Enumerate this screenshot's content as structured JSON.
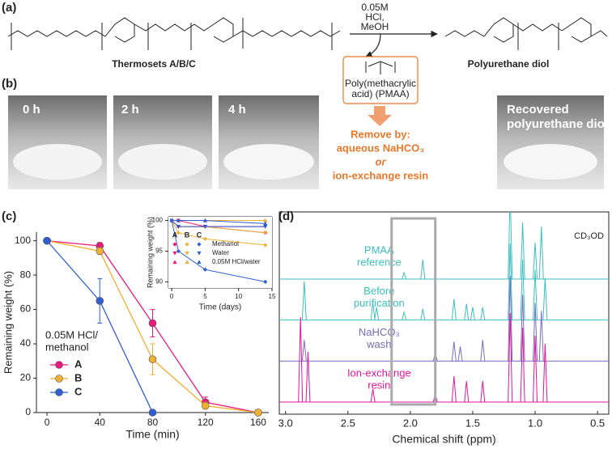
{
  "panel_a": {
    "label": "(a)",
    "conditions": [
      "0.05M",
      "HCl,",
      "MeOH"
    ],
    "reactant": "Thermosets A/B/C",
    "product": "Polyurethane diol",
    "byproduct": [
      "Poly(methacrylic",
      "acid) (PMAA)"
    ],
    "removal": [
      "Remove by:",
      "aqueous NaHCO₃",
      "or",
      "ion-exchange resin"
    ]
  },
  "panel_b": {
    "label": "(b)",
    "photos": [
      [
        "0 h"
      ],
      [
        "2 h"
      ],
      [
        "4 h"
      ],
      [
        "Recovered",
        "polyurethane diol"
      ]
    ]
  },
  "chart_data": [
    {
      "type": "line",
      "label": "(c)",
      "xlabel": "Time (min)",
      "ylabel": "Remaining weight (%)",
      "x": [
        0,
        40,
        80,
        120,
        160
      ],
      "xlim": [
        -8,
        168
      ],
      "xticks": [
        0,
        40,
        80,
        120,
        160
      ],
      "ylim": [
        0,
        105
      ],
      "yticks": [
        0,
        20,
        40,
        60,
        80,
        100
      ],
      "legend_title": [
        "0.05M HCl/",
        "methanol"
      ],
      "series": [
        {
          "name": "A",
          "color": "#e8197c",
          "values": [
            100,
            97,
            52,
            6,
            0
          ],
          "errors": [
            0,
            2,
            8,
            3,
            0
          ]
        },
        {
          "name": "B",
          "color": "#f0b030",
          "values": [
            100,
            94,
            31,
            4,
            0
          ],
          "errors": [
            0,
            2,
            9,
            2,
            0
          ]
        },
        {
          "name": "C",
          "color": "#2f5fd0",
          "values": [
            100,
            65,
            0,
            null,
            null
          ],
          "errors": [
            0,
            13,
            0,
            null,
            null
          ]
        }
      ]
    },
    {
      "type": "line",
      "xlabel": "Time (days)",
      "ylabel": "Remaining weight (%)",
      "x": [
        0,
        1,
        5,
        14
      ],
      "xlim": [
        -0.5,
        15
      ],
      "xticks": [
        0,
        5,
        10,
        15
      ],
      "ylim": [
        89,
        100.6
      ],
      "yticks": [
        90,
        95,
        100
      ],
      "columns": [
        "A",
        "B",
        "C"
      ],
      "colors": [
        "#e8197c",
        "#f0b030",
        "#2f5fd0"
      ],
      "series": [
        {
          "name": "Methanol",
          "marker": "diamond",
          "values": [
            [
              100,
              99,
              99,
              98
            ],
            [
              100,
              98,
              97,
              96
            ],
            [
              100,
              95,
              92,
              90
            ]
          ]
        },
        {
          "name": "Water",
          "marker": "triangle-down",
          "values": [
            [
              100,
              100,
              99,
              99
            ],
            [
              100,
              99,
              99,
              98
            ],
            [
              100,
              99,
              99,
              99
            ]
          ]
        },
        {
          "name": "0.05M HCl/water",
          "marker": "triangle-up",
          "values": [
            [
              100,
              100,
              100,
              100
            ],
            [
              100,
              100,
              100,
              100
            ],
            [
              100,
              100,
              100,
              99.5
            ]
          ]
        }
      ]
    },
    {
      "type": "nmr",
      "label": "(d)",
      "xlabel": "Chemical shift (ppm)",
      "solvent": "CD₃OD",
      "xlim": [
        3.05,
        0.41
      ],
      "xticks": [
        {
          "value": 3,
          "label": "3.0"
        },
        2.5,
        {
          "value": 2,
          "label": "2.0"
        },
        1.5,
        {
          "value": 1,
          "label": "1.0"
        },
        0.5
      ],
      "highlight": [
        2.15,
        1.8
      ],
      "series": [
        {
          "name": [
            "PMAA",
            "reference"
          ],
          "color": "#3cbfbf",
          "peaks": [
            [
              2.05,
              8
            ],
            [
              1.9,
              24
            ],
            [
              1.2,
              110
            ],
            [
              1.1,
              70
            ],
            [
              1.0,
              45
            ],
            [
              0.95,
              65
            ]
          ]
        },
        {
          "name": [
            "Before",
            "purification"
          ],
          "color": "#3cbfbf",
          "peaks": [
            [
              2.85,
              48
            ],
            [
              2.3,
              22
            ],
            [
              2.27,
              16
            ],
            [
              2.05,
              10
            ],
            [
              1.9,
              14
            ],
            [
              1.65,
              26
            ],
            [
              1.55,
              20
            ],
            [
              1.5,
              16
            ],
            [
              1.42,
              16
            ],
            [
              1.2,
              95
            ],
            [
              1.1,
              75
            ],
            [
              1.0,
              62
            ],
            [
              0.92,
              52
            ]
          ]
        },
        {
          "name": [
            "NaHCO₃",
            "wash"
          ],
          "color": "#7a6bbf",
          "peaks": [
            [
              2.85,
              26
            ],
            [
              1.8,
              10
            ],
            [
              1.65,
              24
            ],
            [
              1.6,
              18
            ],
            [
              1.42,
              26
            ],
            [
              1.2,
              105
            ],
            [
              1.1,
              82
            ],
            [
              1.0,
              72
            ],
            [
              0.95,
              62
            ]
          ]
        },
        {
          "name": [
            "Ion-exchange",
            "resin"
          ],
          "color": "#e0169a",
          "peaks": [
            [
              2.88,
              105
            ],
            [
              2.82,
              62
            ],
            [
              2.3,
              16
            ],
            [
              1.8,
              10
            ],
            [
              1.65,
              32
            ],
            [
              1.55,
              26
            ],
            [
              1.42,
              26
            ],
            [
              1.2,
              110
            ],
            [
              1.1,
              92
            ],
            [
              1.0,
              82
            ],
            [
              0.92,
              72
            ]
          ]
        }
      ]
    }
  ]
}
